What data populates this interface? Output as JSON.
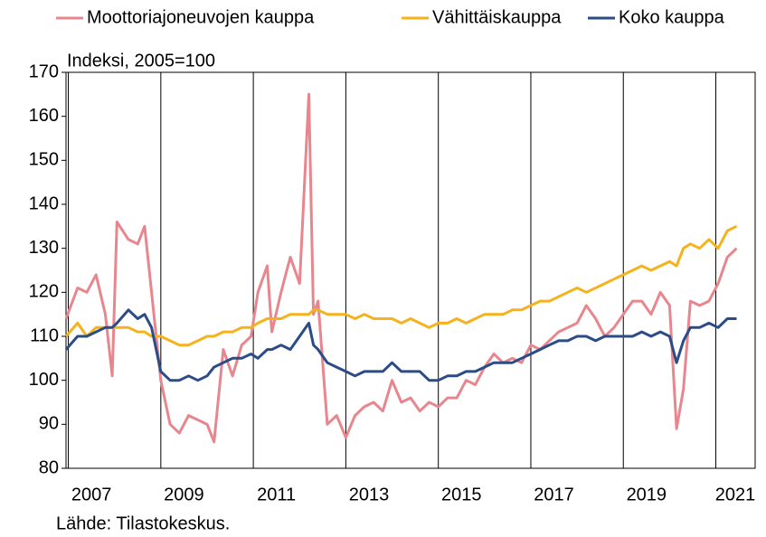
{
  "chart_data": {
    "type": "line",
    "y_label": "Indeksi, 2005=100",
    "source": "Lähde: Tilastokeskus.",
    "x": [
      2006.95,
      2007.2,
      2007.4,
      2007.6,
      2007.8,
      2007.95,
      2008.05,
      2008.3,
      2008.5,
      2008.65,
      2008.8,
      2009.0,
      2009.2,
      2009.4,
      2009.6,
      2009.8,
      2010.0,
      2010.15,
      2010.35,
      2010.55,
      2010.75,
      2010.95,
      2011.1,
      2011.3,
      2011.4,
      2011.6,
      2011.8,
      2012.0,
      2012.2,
      2012.3,
      2012.4,
      2012.6,
      2012.8,
      2013.0,
      2013.2,
      2013.4,
      2013.6,
      2013.8,
      2014.0,
      2014.2,
      2014.4,
      2014.6,
      2014.8,
      2015.0,
      2015.2,
      2015.4,
      2015.6,
      2015.8,
      2016.0,
      2016.2,
      2016.4,
      2016.6,
      2016.8,
      2017.0,
      2017.2,
      2017.4,
      2017.6,
      2017.8,
      2018.0,
      2018.2,
      2018.4,
      2018.6,
      2018.8,
      2019.0,
      2019.2,
      2019.4,
      2019.6,
      2019.8,
      2020.0,
      2020.15,
      2020.3,
      2020.45,
      2020.65,
      2020.85,
      2021.05,
      2021.25,
      2021.45
    ],
    "series": [
      {
        "name": "Moottoriajoneuvojen kauppa",
        "color": "#e8868e",
        "values": [
          114,
          121,
          120,
          124,
          115,
          101,
          136,
          132,
          131,
          135,
          120,
          100,
          90,
          88,
          92,
          91,
          90,
          86,
          107,
          101,
          108,
          110,
          120,
          126,
          111,
          120,
          128,
          122,
          165,
          115,
          118,
          90,
          92,
          87,
          92,
          94,
          95,
          93,
          100,
          95,
          96,
          93,
          95,
          94,
          96,
          96,
          100,
          99,
          103,
          106,
          104,
          105,
          104,
          108,
          107,
          109,
          111,
          112,
          113,
          117,
          114,
          110,
          112,
          115,
          118,
          118,
          115,
          120,
          117,
          89,
          98,
          118,
          117,
          118,
          122,
          128,
          130
        ]
      },
      {
        "name": "Vähittäiskauppa",
        "color": "#f5b21c",
        "values": [
          110,
          113,
          110,
          112,
          112,
          112,
          112,
          112,
          111,
          111,
          110,
          110,
          109,
          108,
          108,
          109,
          110,
          110,
          111,
          111,
          112,
          112,
          113,
          114,
          114,
          114,
          115,
          115,
          115,
          116,
          116,
          115,
          115,
          115,
          114,
          115,
          114,
          114,
          114,
          113,
          114,
          113,
          112,
          113,
          113,
          114,
          113,
          114,
          115,
          115,
          115,
          116,
          116,
          117,
          118,
          118,
          119,
          120,
          121,
          120,
          121,
          122,
          123,
          124,
          125,
          126,
          125,
          126,
          127,
          126,
          130,
          131,
          130,
          132,
          130,
          134,
          135
        ]
      },
      {
        "name": "Koko kauppa",
        "color": "#2b4c86",
        "values": [
          107,
          110,
          110,
          111,
          112,
          112,
          113,
          116,
          114,
          115,
          112,
          102,
          100,
          100,
          101,
          100,
          101,
          103,
          104,
          105,
          105,
          106,
          105,
          107,
          107,
          108,
          107,
          110,
          113,
          108,
          107,
          104,
          103,
          102,
          101,
          102,
          102,
          102,
          104,
          102,
          102,
          102,
          100,
          100,
          101,
          101,
          102,
          102,
          103,
          104,
          104,
          104,
          105,
          106,
          107,
          108,
          109,
          109,
          110,
          110,
          109,
          110,
          110,
          110,
          110,
          111,
          110,
          111,
          110,
          104,
          109,
          112,
          112,
          113,
          112,
          114,
          114
        ]
      }
    ],
    "xlim": [
      2006.95,
      2021.85
    ],
    "xticks": [
      2007,
      2009,
      2011,
      2013,
      2015,
      2017,
      2019,
      2021
    ],
    "ylim": [
      80,
      170
    ],
    "yticks": [
      80,
      90,
      100,
      110,
      120,
      130,
      140,
      150,
      160,
      170
    ],
    "grid": "x",
    "legend": "top"
  }
}
